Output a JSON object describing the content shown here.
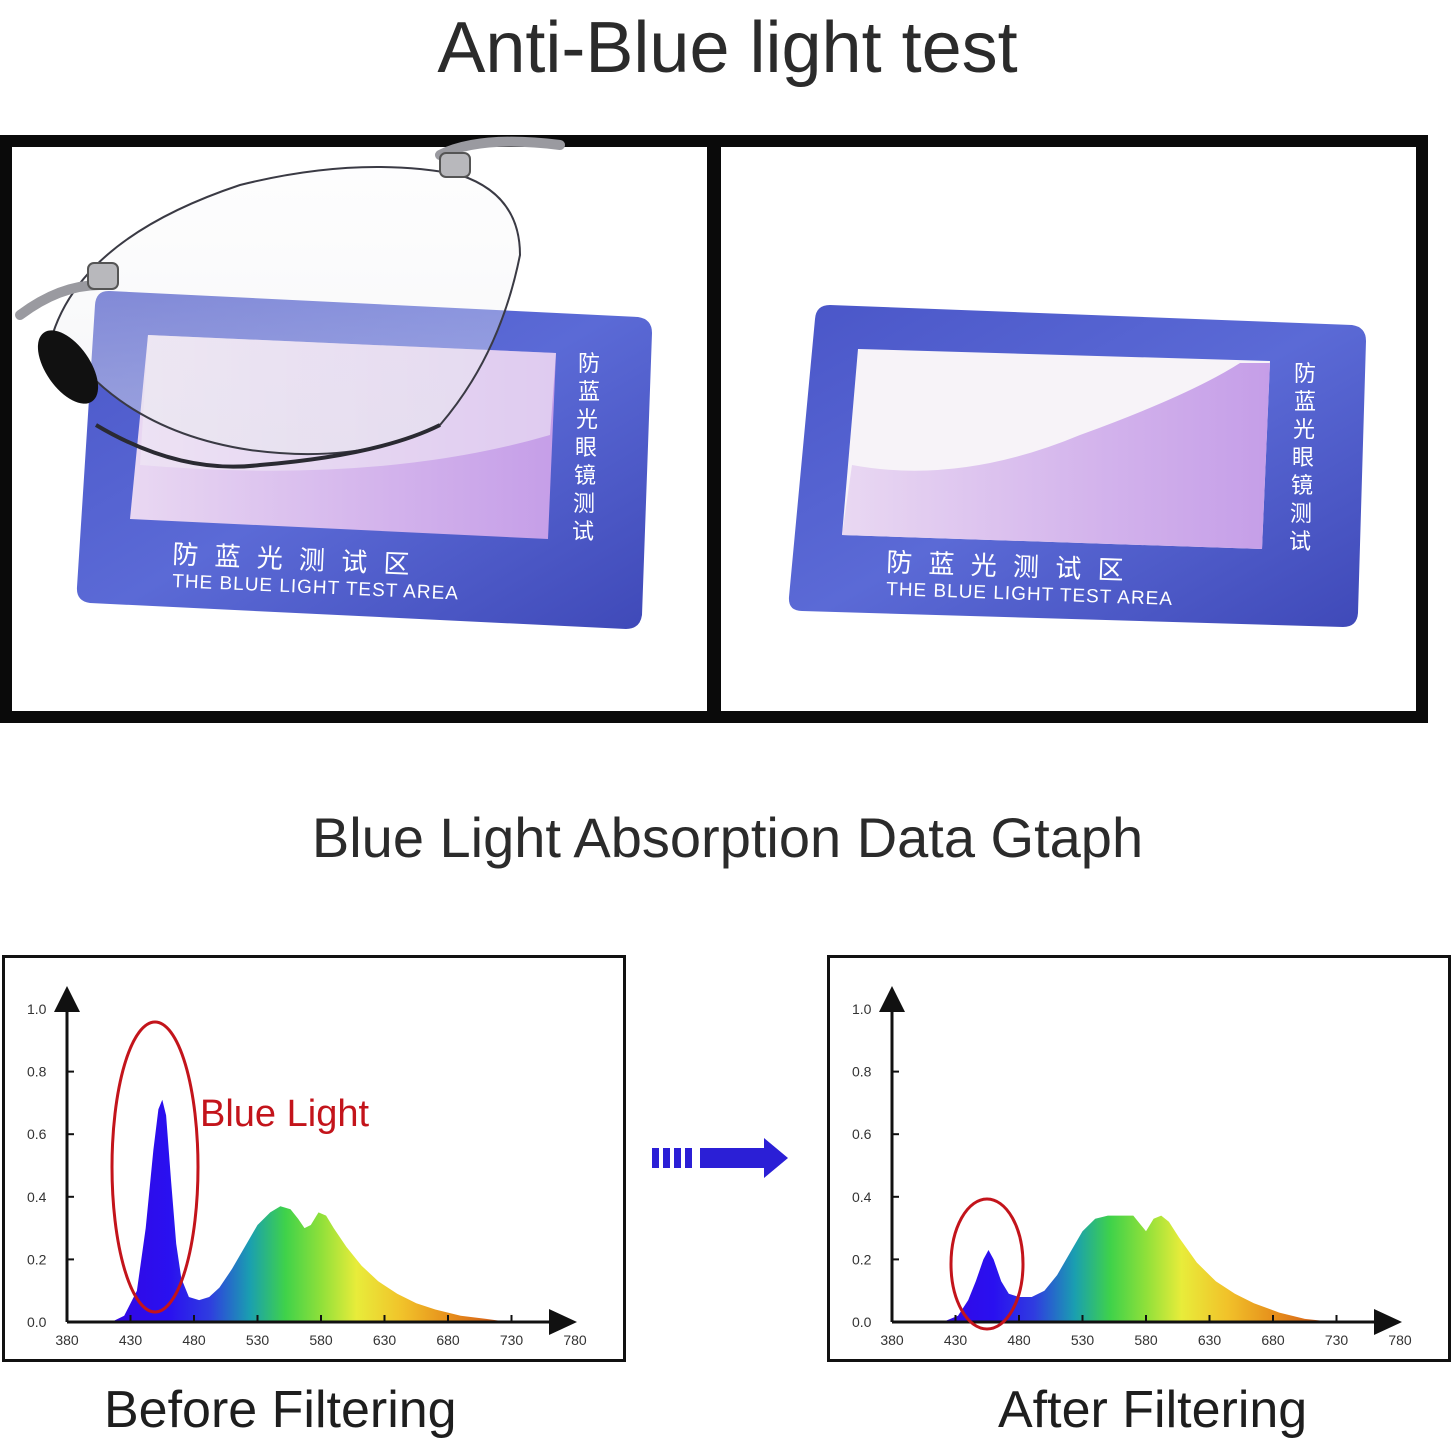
{
  "header": {
    "title": "Anti-Blue light test"
  },
  "photos": {
    "left_card": {
      "side_text": [
        "防",
        "蓝",
        "光",
        "眼",
        "镜",
        "测",
        "试"
      ],
      "bottom_cn": "防 蓝 光 测 试 区",
      "bottom_en": "THE BLUE LIGHT TEST AREA"
    },
    "right_card": {
      "side_text": [
        "防",
        "蓝",
        "光",
        "眼",
        "镜",
        "测",
        "试"
      ],
      "bottom_cn": "防 蓝 光 测 试 区",
      "bottom_en": "THE BLUE LIGHT TEST AREA"
    }
  },
  "section": {
    "title": "Blue Light Absorption Data Gtaph"
  },
  "chart_data": [
    {
      "type": "area",
      "title": "",
      "caption": "Before Filtering",
      "xlabel": "",
      "ylabel": "",
      "xlim": [
        380,
        780
      ],
      "ylim": [
        0,
        1.0
      ],
      "xticks": [
        380,
        430,
        480,
        530,
        580,
        630,
        680,
        730,
        780
      ],
      "yticks": [
        0.0,
        0.2,
        0.4,
        0.6,
        0.8,
        1.0
      ],
      "ytick_labels": [
        "0.0",
        "0.2",
        "0.4",
        "0.6",
        "0.8",
        "1.0"
      ],
      "annotation": "Blue Light",
      "x": [
        415,
        425,
        435,
        442,
        448,
        452,
        455,
        458,
        462,
        466,
        470,
        476,
        484,
        492,
        500,
        510,
        520,
        530,
        540,
        548,
        556,
        562,
        567,
        572,
        578,
        584,
        590,
        600,
        612,
        625,
        640,
        655,
        670,
        690,
        710,
        728
      ],
      "y": [
        0.0,
        0.02,
        0.1,
        0.3,
        0.55,
        0.68,
        0.71,
        0.66,
        0.45,
        0.25,
        0.14,
        0.08,
        0.07,
        0.08,
        0.11,
        0.17,
        0.24,
        0.31,
        0.35,
        0.37,
        0.36,
        0.33,
        0.3,
        0.31,
        0.35,
        0.34,
        0.3,
        0.24,
        0.18,
        0.13,
        0.09,
        0.06,
        0.04,
        0.02,
        0.01,
        0.0
      ]
    },
    {
      "type": "area",
      "title": "",
      "caption": "After Filtering",
      "xlabel": "",
      "ylabel": "",
      "xlim": [
        380,
        780
      ],
      "ylim": [
        0,
        1.0
      ],
      "xticks": [
        380,
        430,
        480,
        530,
        580,
        630,
        680,
        730,
        780
      ],
      "yticks": [
        0.0,
        0.2,
        0.4,
        0.6,
        0.8,
        1.0
      ],
      "ytick_labels": [
        "0.0",
        "0.2",
        "0.4",
        "0.6",
        "0.8",
        "1.0"
      ],
      "x": [
        420,
        432,
        440,
        446,
        452,
        456,
        460,
        466,
        472,
        480,
        490,
        500,
        510,
        520,
        530,
        540,
        550,
        560,
        570,
        576,
        580,
        586,
        592,
        598,
        606,
        620,
        635,
        650,
        665,
        685,
        705,
        728
      ],
      "y": [
        0.0,
        0.02,
        0.07,
        0.13,
        0.2,
        0.23,
        0.2,
        0.13,
        0.09,
        0.08,
        0.08,
        0.1,
        0.15,
        0.22,
        0.29,
        0.33,
        0.34,
        0.34,
        0.34,
        0.31,
        0.29,
        0.33,
        0.34,
        0.32,
        0.27,
        0.19,
        0.13,
        0.09,
        0.06,
        0.03,
        0.01,
        0.0
      ]
    }
  ],
  "arrow": {
    "label": ""
  }
}
